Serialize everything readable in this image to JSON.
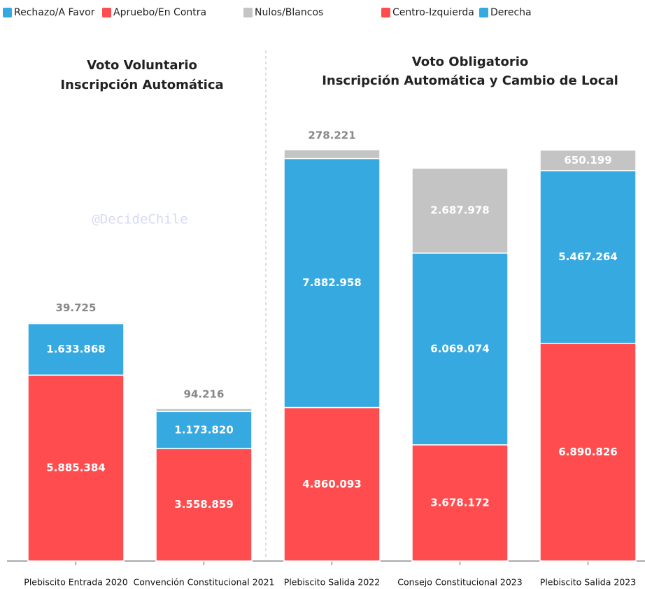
{
  "chart_data": {
    "type": "stacked-bar",
    "legend": [
      {
        "label": "Rechazo/A Favor",
        "color": "#36a9e1"
      },
      {
        "label": "Apruebo/En Contra",
        "color": "#ff4d4f"
      },
      {
        "label": "Nulos/Blancos",
        "color": "#c4c4c4"
      },
      {
        "label": "Centro-Izquierda",
        "color": "#ff4d4f"
      },
      {
        "label": "Derecha",
        "color": "#36a9e1"
      }
    ],
    "panels": [
      {
        "lines": [
          "Voto Voluntario",
          "Inscripción Automática"
        ]
      },
      {
        "lines": [
          "Voto Obligatorio",
          "Inscripción Automática y Cambio de Local"
        ]
      }
    ],
    "watermark": "@DecideChile",
    "categories": [
      "Plebiscito Entrada 2020",
      "Convención Constitucional 2021",
      "Plebiscito Salida 2022",
      "Consejo Constitucional 2023",
      "Plebiscito Salida 2023"
    ],
    "series": [
      {
        "color": "#ff4d4f",
        "values": [
          5885384,
          3558859,
          4860093,
          3678172,
          6890826
        ],
        "value_labels": [
          "5.885.384",
          "3.558.859",
          "4.860.093",
          "3.678.172",
          "6.890.826"
        ]
      },
      {
        "color": "#36a9e1",
        "values": [
          1633868,
          1173820,
          7882958,
          6069074,
          5467264
        ],
        "value_labels": [
          "1.633.868",
          "1.173.820",
          "7.882.958",
          "6.069.074",
          "5.467.264"
        ]
      },
      {
        "color": "#c4c4c4",
        "values": [
          39725,
          94216,
          278221,
          2687978,
          650199
        ],
        "value_labels": [
          "39.725",
          "94.216",
          "278.221",
          "2.687.978",
          "650.199"
        ]
      }
    ]
  }
}
